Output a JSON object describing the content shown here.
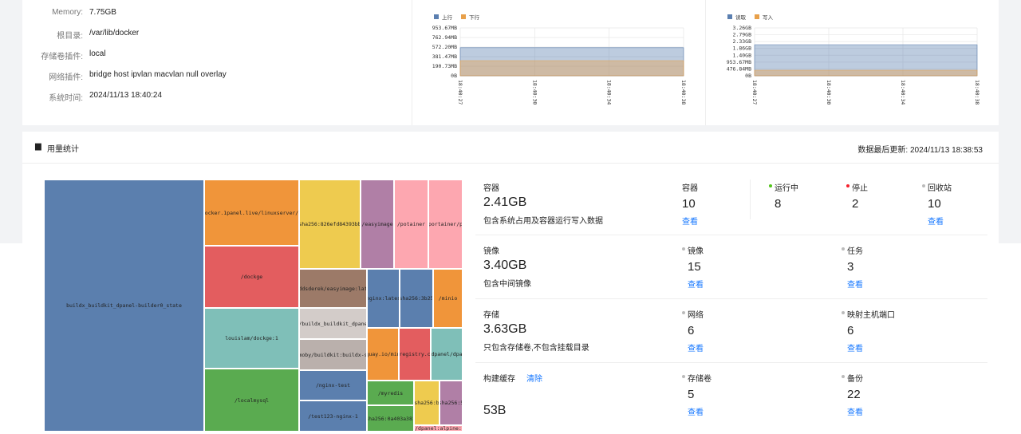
{
  "info": {
    "rows": [
      {
        "label": "Memory:",
        "value": "7.75GB"
      },
      {
        "label": "根目录:",
        "value": "/var/lib/docker"
      },
      {
        "label": "存储卷插件:",
        "value": "local"
      },
      {
        "label": "网络插件:",
        "value": "bridge  host  ipvlan  macvlan  null  overlay"
      },
      {
        "label": "系统时间:",
        "value": "2024/11/13 18:40:24"
      }
    ]
  },
  "network_chart": {
    "type": "area",
    "categories": [
      "18:40:27",
      "18:40:30",
      "18:40:34",
      "18:40:38"
    ],
    "series": [
      {
        "name": "上行",
        "color": "#5b7fb0",
        "values": [
          560,
          560,
          560,
          560
        ]
      },
      {
        "name": "下行",
        "color": "#e8a04a",
        "values": [
          302,
          302,
          302,
          302
        ]
      }
    ],
    "ylim": [
      0,
      953.67
    ],
    "yticks": [
      {
        "value": 0,
        "label": "0B"
      },
      {
        "value": 190.73,
        "label": "190.73MB"
      },
      {
        "value": 381.47,
        "label": "381.47MB"
      },
      {
        "value": 572.2,
        "label": "572.20MB"
      },
      {
        "value": 762.94,
        "label": "762.94MB"
      },
      {
        "value": 953.67,
        "label": "953.67MB"
      }
    ],
    "grid": true
  },
  "disk_chart": {
    "type": "area",
    "categories": [
      "18:40:27",
      "18:40:30",
      "18:40:34",
      "18:40:38"
    ],
    "series": [
      {
        "name": "读取",
        "color": "#5b7fb0",
        "values": [
          2170,
          2170,
          2170,
          2170
        ]
      },
      {
        "name": "写入",
        "color": "#e8a04a",
        "values": [
          390,
          390,
          390,
          390
        ]
      }
    ],
    "ylim": [
      0,
      3337.86
    ],
    "yticks": [
      {
        "value": 0,
        "label": "0B"
      },
      {
        "value": 476.84,
        "label": "476.84MB"
      },
      {
        "value": 953.67,
        "label": "953.67MB"
      },
      {
        "value": 1430.51,
        "label": "1.40GB"
      },
      {
        "value": 1907.35,
        "label": "1.86GB"
      },
      {
        "value": 2384.19,
        "label": "2.33GB"
      },
      {
        "value": 2861.02,
        "label": "2.79GB"
      },
      {
        "value": 3337.86,
        "label": "3.26GB"
      }
    ],
    "grid": true
  },
  "usage": {
    "title": "用量统计",
    "updated": "数据最后更新: 2024/11/13 18:38:53",
    "treemap": {
      "nodes": [
        {
          "label": "buildx_buildkit_dpanel-builder0_state",
          "color": "#5b7fae"
        },
        {
          "label": "docker.1panel.live/linuxserver/c",
          "color": "#f0953a"
        },
        {
          "label": "/dockge",
          "color": "#e35d5f"
        },
        {
          "label": "louislam/dockge:1",
          "color": "#7fbfb8"
        },
        {
          "label": "/localmysql",
          "color": "#5aab50"
        },
        {
          "label": "sha256:826efd84393bb",
          "color": "#eecb4f"
        },
        {
          "label": "/easyimage",
          "color": "#b07fa6"
        },
        {
          "label": "/potainer",
          "color": "#fda7b0"
        },
        {
          "label": "portainer/p",
          "color": "#fda7b0"
        },
        {
          "label": "ddsderek/easyimage:lat",
          "color": "#9c7a68"
        },
        {
          "label": "/buildx_buildkit_dpane",
          "color": "#d3ccc9"
        },
        {
          "label": "moby/buildkit:buildx-s",
          "color": "#bab0ac"
        },
        {
          "label": "/nginx-test",
          "color": "#5b7fae"
        },
        {
          "label": "/test123-nginx-1",
          "color": "#5b7fae"
        },
        {
          "label": "nginx:lates",
          "color": "#5b7fae"
        },
        {
          "label": "sha256:3b25",
          "color": "#5b7fae"
        },
        {
          "label": "/minio",
          "color": "#f0953a"
        },
        {
          "label": "quay.io/min",
          "color": "#f0953a"
        },
        {
          "label": "registry.c",
          "color": "#e35d5f"
        },
        {
          "label": "dpanel/dpa",
          "color": "#7fbfb8"
        },
        {
          "label": "/myredis",
          "color": "#5aab50"
        },
        {
          "label": "sha256:0a403a381",
          "color": "#5aab50"
        },
        {
          "label": "sha256:b",
          "color": "#eecb4f"
        },
        {
          "label": "sha256:5",
          "color": "#b07fa6"
        },
        {
          "label": "/dpanel:alpine:",
          "color": "#fda7b0"
        }
      ]
    },
    "rows": [
      {
        "title": "容器",
        "size": "2.41GB",
        "desc": "包含系统占用及容器运行写入数据",
        "items": [
          {
            "label": "容器",
            "value": "10",
            "link": "查看"
          },
          {
            "label": "运行中",
            "value": "8",
            "dot": "#52c41a"
          },
          {
            "label": "停止",
            "value": "2",
            "dot": "#f5222d"
          },
          {
            "label": "回收站",
            "value": "10",
            "link": "查看",
            "dot": "#bbbbbb"
          }
        ]
      },
      {
        "title": "镜像",
        "size": "3.40GB",
        "desc": "包含中间镜像",
        "items": [
          {
            "label": "镜像",
            "value": "15",
            "link": "查看",
            "dot": "#bbbbbb"
          },
          {
            "label": "任务",
            "value": "3",
            "link": "查看",
            "dot": "#bbbbbb"
          }
        ]
      },
      {
        "title": "存储",
        "size": "3.63GB",
        "desc": "只包含存储卷,不包含挂载目录",
        "items": [
          {
            "label": "网络",
            "value": "6",
            "link": "查看",
            "dot": "#bbbbbb"
          },
          {
            "label": "映射主机端口",
            "value": "6",
            "link": "查看",
            "dot": "#bbbbbb"
          }
        ]
      },
      {
        "title": "构建缓存",
        "action": "清除",
        "size": "53B",
        "items": [
          {
            "label": "存储卷",
            "value": "5",
            "link": "查看",
            "dot": "#bbbbbb"
          },
          {
            "label": "备份",
            "value": "22",
            "link": "查看",
            "dot": "#bbbbbb"
          }
        ]
      }
    ]
  }
}
